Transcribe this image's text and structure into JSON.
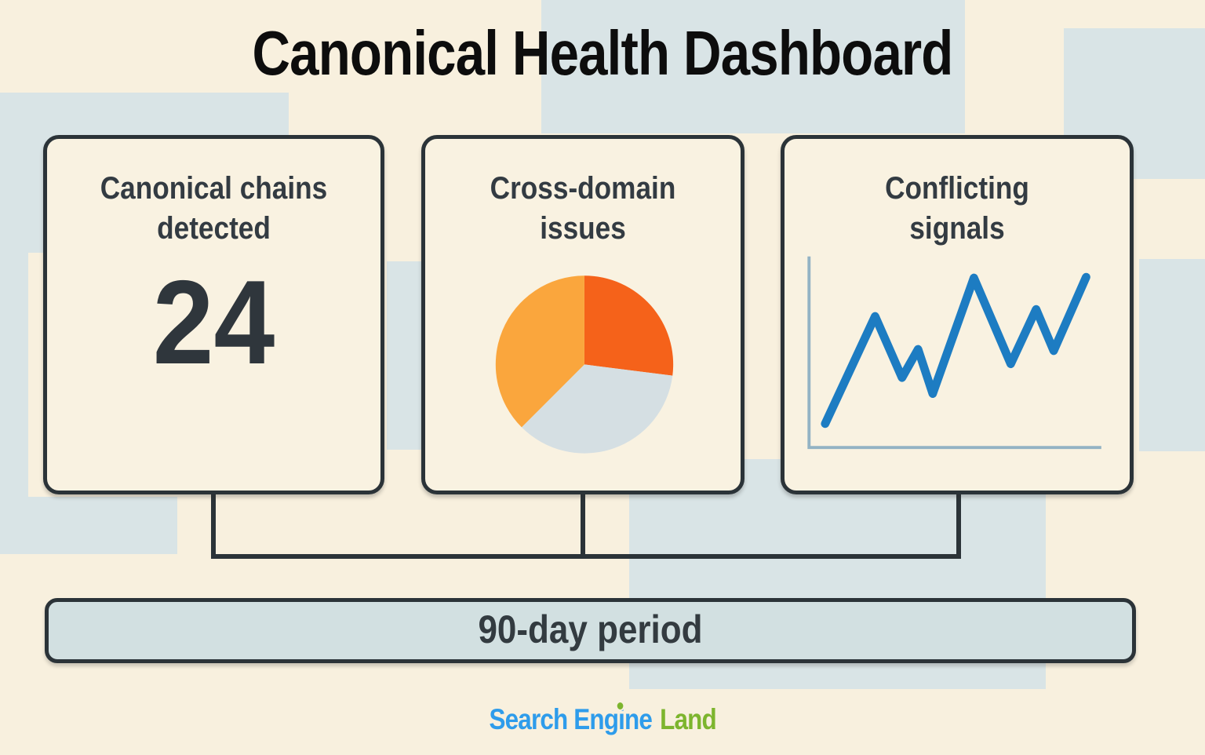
{
  "title": "Canonical Health Dashboard",
  "cards": [
    {
      "id": "canonical-chains",
      "heading_lines": [
        "Canonical chains",
        "detected"
      ],
      "value": "24"
    },
    {
      "id": "cross-domain",
      "heading_lines": [
        "Cross-domain",
        "issues"
      ]
    },
    {
      "id": "conflicting-signals",
      "heading_lines": [
        "Conflicting",
        "signals"
      ]
    }
  ],
  "period_label": "90-day period",
  "brand": {
    "search_engine": "Search Engine",
    "land": "Land"
  },
  "colors": {
    "background": "#f8f0de",
    "tile_blue": "#d9e4e6",
    "card_fill": "#f9f2e1",
    "outline_dark": "#2b3338",
    "text_dark": "#333b42",
    "logo_blue": "#2e9ceb",
    "logo_green": "#7db52e"
  },
  "chart_data": [
    {
      "type": "pie",
      "title": "Cross-domain issues",
      "start_angle_deg": 0,
      "legend_position": "none",
      "slices": [
        {
          "name": "dark-orange",
          "value": 27.0,
          "color": "#f5621a"
        },
        {
          "name": "gray",
          "value": 35.5,
          "color": "#d5dfe3"
        },
        {
          "name": "light-orange",
          "value": 37.5,
          "color": "#faa63d"
        }
      ]
    },
    {
      "type": "line",
      "title": "Conflicting signals",
      "grid": false,
      "axis_labels": "none",
      "line_color": "#1d7cc2",
      "axis_color": "#93b3c4",
      "x_pct": [
        5.5,
        22.6,
        31.8,
        37.3,
        42.3,
        56.4,
        69.0,
        77.7,
        83.7,
        94.8
      ],
      "y_pct": [
        13.5,
        69.0,
        37.3,
        52.0,
        29.0,
        88.9,
        44.4,
        72.6,
        51.2,
        89.3
      ]
    }
  ]
}
